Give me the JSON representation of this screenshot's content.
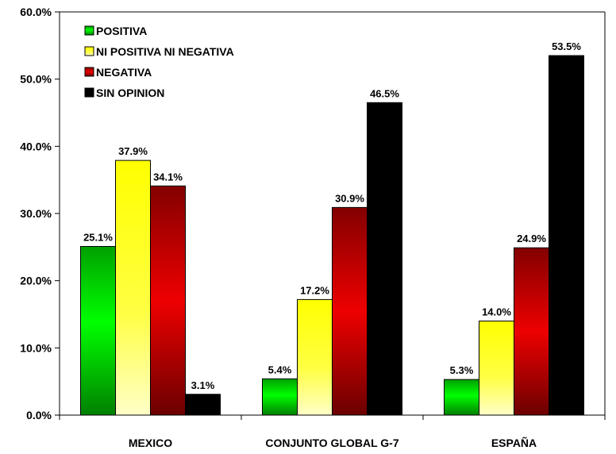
{
  "chart_data": {
    "type": "bar",
    "categories": [
      "MEXICO",
      "CONJUNTO GLOBAL G-7",
      "ESPAÑA"
    ],
    "series": [
      {
        "name": "POSITIVA",
        "color": "#00cc00",
        "values": [
          25.1,
          5.4,
          5.3
        ],
        "labels": [
          "25.1%",
          "5.4%",
          "5.3%"
        ]
      },
      {
        "name": "NI POSITIVA NI NEGATIVA",
        "color": "#ffff33",
        "values": [
          37.9,
          17.2,
          14.0
        ],
        "labels": [
          "37.9%",
          "17.2%",
          "14.0%"
        ]
      },
      {
        "name": "NEGATIVA",
        "color": "#ee0000",
        "values": [
          34.1,
          30.9,
          24.9
        ],
        "labels": [
          "34.1%",
          "30.9%",
          "24.9%"
        ]
      },
      {
        "name": "SIN OPINION",
        "color": "#000000",
        "values": [
          3.1,
          46.5,
          53.5
        ],
        "labels": [
          "3.1%",
          "46.5%",
          "53.5%"
        ]
      }
    ],
    "ylim": [
      0,
      60
    ],
    "yticks": [
      {
        "value": 0,
        "label": "0.0%"
      },
      {
        "value": 10,
        "label": "10.0%"
      },
      {
        "value": 20,
        "label": "20.0%"
      },
      {
        "value": 30,
        "label": "30.0%"
      },
      {
        "value": 40,
        "label": "40.0%"
      },
      {
        "value": 50,
        "label": "50.0%"
      },
      {
        "value": 60,
        "label": "60.0%"
      }
    ],
    "title": "",
    "xlabel": "",
    "ylabel": "",
    "grid": false,
    "legend_position": "top-left"
  }
}
